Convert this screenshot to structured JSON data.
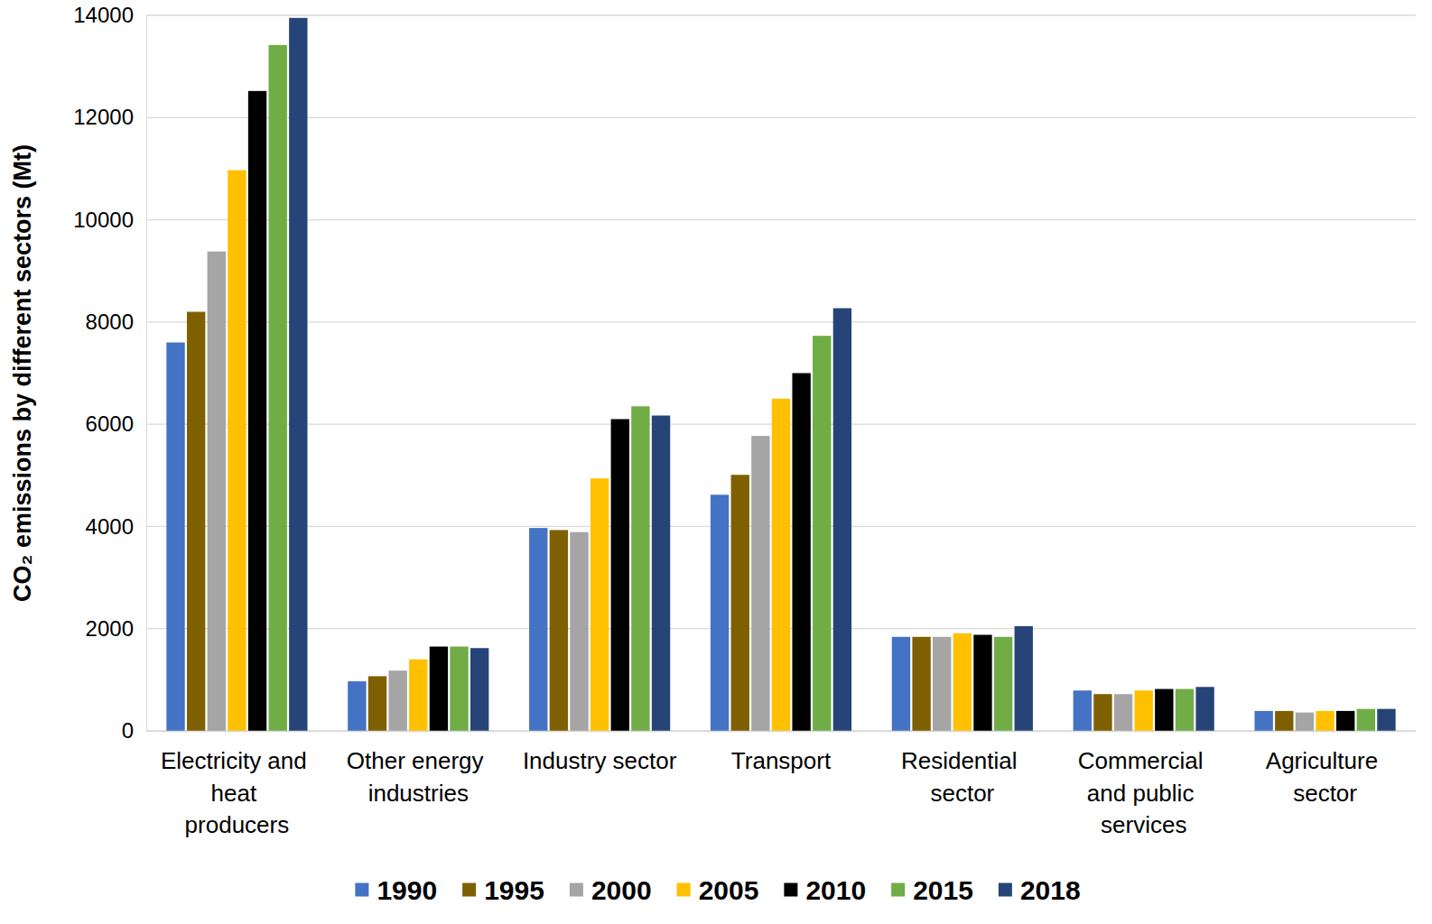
{
  "chart_data": {
    "type": "bar",
    "y_label": "CO₂ emissions by different sectors (Mt)",
    "categories": [
      "Electricity and heat producers",
      "Other energy industries",
      "Industry sector",
      "Transport",
      "Residential sector",
      "Commercial and public services",
      "Agriculture sector"
    ],
    "series": [
      {
        "name": "1990",
        "color": "#4472c4",
        "values": [
          7600,
          970,
          3970,
          4620,
          1840,
          790,
          390
        ]
      },
      {
        "name": "1995",
        "color": "#7f6000",
        "values": [
          8200,
          1070,
          3930,
          5010,
          1840,
          720,
          390
        ]
      },
      {
        "name": "2000",
        "color": "#a5a5a5",
        "values": [
          9380,
          1180,
          3890,
          5770,
          1840,
          720,
          360
        ]
      },
      {
        "name": "2005",
        "color": "#ffc000",
        "values": [
          10970,
          1400,
          4940,
          6500,
          1910,
          790,
          390
        ]
      },
      {
        "name": "2010",
        "color": "#000000",
        "values": [
          12520,
          1650,
          6100,
          7000,
          1880,
          820,
          390
        ]
      },
      {
        "name": "2015",
        "color": "#70ad47",
        "values": [
          13420,
          1650,
          6350,
          7730,
          1840,
          820,
          430
        ]
      },
      {
        "name": "2018",
        "color": "#264478",
        "values": [
          13950,
          1620,
          6170,
          8270,
          2050,
          860,
          430
        ]
      }
    ],
    "ylim": [
      0,
      14000
    ],
    "yticks": [
      0,
      2000,
      4000,
      6000,
      8000,
      10000,
      12000,
      14000
    ],
    "grid": true,
    "legend": "bottom"
  }
}
